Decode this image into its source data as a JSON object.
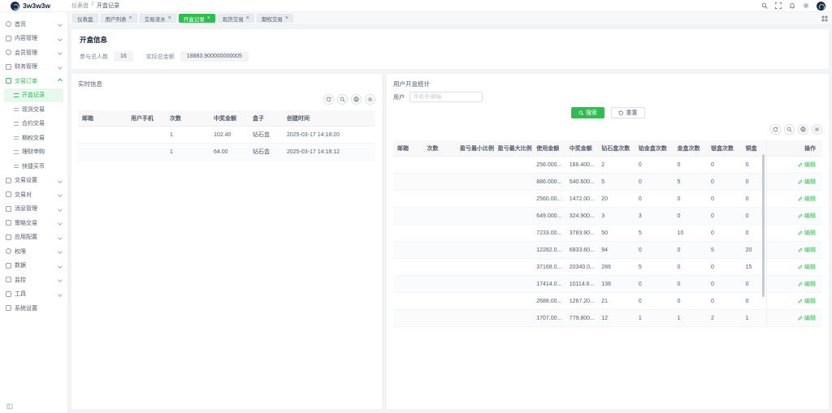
{
  "colors": {
    "accent": "#2ebe4e",
    "accent_bg": "#e7f8ec",
    "body_bg": "#f2f3f5",
    "table_header_bg": "#f8f8f9"
  },
  "glyphs": {
    "close": "×"
  },
  "header": {
    "logo_text": "3w3w3w",
    "breadcrumb": [
      "仪表盘",
      "开盒记录"
    ]
  },
  "tabs": [
    {
      "label": "仪表盘",
      "closable": false,
      "active": false
    },
    {
      "label": "用户列表",
      "closable": true,
      "active": false
    },
    {
      "label": "交易流水",
      "closable": true,
      "active": false
    },
    {
      "label": "开盒记录",
      "closable": true,
      "active": true
    },
    {
      "label": "现货交易",
      "closable": true,
      "active": false
    },
    {
      "label": "期权交易",
      "closable": true,
      "active": false
    }
  ],
  "sidebar": {
    "items": [
      {
        "label": "首页",
        "icon": "home-icon",
        "expandable": true
      },
      {
        "label": "内容管理",
        "icon": "content-icon",
        "expandable": true
      },
      {
        "label": "会员管理",
        "icon": "user-icon",
        "expandable": true
      },
      {
        "label": "财务管理",
        "icon": "finance-icon",
        "expandable": true
      },
      {
        "label": "交易订单",
        "icon": "orders-icon",
        "expandable": true,
        "expanded": true,
        "active_parent": true,
        "children": [
          {
            "label": "开盒记录",
            "active": true
          },
          {
            "label": "现货交易"
          },
          {
            "label": "合约交易"
          },
          {
            "label": "期权交易"
          },
          {
            "label": "理财申购"
          },
          {
            "label": "快捷买币"
          }
        ]
      },
      {
        "label": "交易设置",
        "icon": "trade-settings-icon",
        "expandable": true
      },
      {
        "label": "交易对",
        "icon": "pair-icon",
        "expandable": true
      },
      {
        "label": "消息管理",
        "icon": "message-icon",
        "expandable": true
      },
      {
        "label": "策略交易",
        "icon": "strategy-icon",
        "expandable": true
      },
      {
        "label": "应用配置",
        "icon": "app-config-icon",
        "expandable": true
      },
      {
        "label": "权限",
        "icon": "permission-icon",
        "expandable": true
      },
      {
        "label": "数据",
        "icon": "data-icon",
        "expandable": true
      },
      {
        "label": "监控",
        "icon": "monitor-icon",
        "expandable": true
      },
      {
        "label": "工具",
        "icon": "tools-icon",
        "expandable": true
      },
      {
        "label": "系统设置",
        "icon": "system-icon",
        "expandable": false
      }
    ]
  },
  "page": {
    "title": "开盒信息",
    "stats": [
      {
        "label": "参与总人数",
        "value": "16"
      },
      {
        "label": "实际总金额",
        "value": "18883.900000000005"
      }
    ]
  },
  "realtime_panel": {
    "title": "实时信息",
    "columns": [
      "邮箱",
      "用户手机",
      "次数",
      "中奖金额",
      "盒子",
      "创建时间"
    ],
    "rows": [
      [
        "",
        "",
        "1",
        "102.40",
        "钻石盒",
        "2025-03-17 14:18:20"
      ],
      [
        "",
        "",
        "1",
        "64.00",
        "钻石盒",
        "2025-03-17 14:18:12"
      ]
    ]
  },
  "stats_panel": {
    "title": "用户开盒统计",
    "form": {
      "label": "用户",
      "placeholder": "手机号/邮箱"
    },
    "search_label": "搜索",
    "reset_label": "重置",
    "edit_label": "编辑",
    "columns": [
      "邮箱",
      "次数",
      "盈亏最小比例",
      "盈亏最大比例",
      "使用金额",
      "中奖金额",
      "钻石盒次数",
      "铂金盒次数",
      "金盒次数",
      "银盒次数",
      "铜盒",
      "操作"
    ],
    "rows": [
      [
        "",
        "",
        "",
        "",
        "256.000...",
        "166.400...",
        "2",
        "0",
        "0",
        "0",
        "0"
      ],
      [
        "",
        "",
        "",
        "",
        "886.000...",
        "540.600...",
        "5",
        "0",
        "5",
        "0",
        "0"
      ],
      [
        "",
        "",
        "",
        "",
        "2560.00...",
        "1472.00...",
        "20",
        "0",
        "0",
        "0",
        "0"
      ],
      [
        "",
        "",
        "",
        "",
        "649.000...",
        "324.900...",
        "3",
        "3",
        "0",
        "0",
        "0"
      ],
      [
        "",
        "",
        "",
        "",
        "7233.00...",
        "3783.90...",
        "50",
        "5",
        "10",
        "0",
        "0"
      ],
      [
        "",
        "",
        "",
        "",
        "12282.0...",
        "6833.60...",
        "94",
        "0",
        "0",
        "5",
        "20"
      ],
      [
        "",
        "",
        "",
        "",
        "37168.0...",
        "20340.0...",
        "286",
        "5",
        "0",
        "0",
        "15"
      ],
      [
        "",
        "",
        "",
        "",
        "17414.0...",
        "10114.6...",
        "136",
        "0",
        "0",
        "0",
        "0"
      ],
      [
        "",
        "",
        "",
        "",
        "2688.00...",
        "1267.20...",
        "21",
        "0",
        "0",
        "0",
        "0"
      ],
      [
        "",
        "",
        "",
        "",
        "1707.00...",
        "779.800...",
        "12",
        "1",
        "1",
        "2",
        "1"
      ]
    ]
  }
}
